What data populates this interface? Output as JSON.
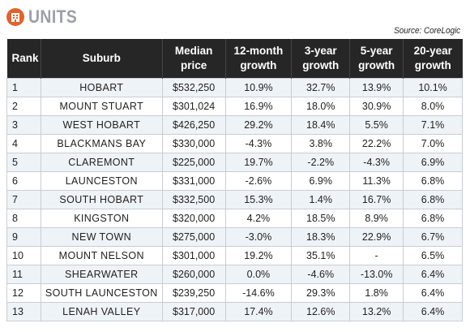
{
  "header": {
    "title": "UNITS",
    "icon": "building-icon",
    "source": "Source: CoreLogic"
  },
  "colors": {
    "accent": "#e2622b",
    "title_gray": "#9aa0a6",
    "header_bg": "#262626",
    "row_alt": "#eef3f8"
  },
  "table": {
    "headers": {
      "rank": "Rank",
      "suburb": "Suburb",
      "price_1": "Median",
      "price_2": "price",
      "g12_1": "12-month",
      "g12_2": "growth",
      "g3_1": "3-year",
      "g3_2": "growth",
      "g5_1": "5-year",
      "g5_2": "growth",
      "g20_1": "20-year",
      "g20_2": "growth"
    },
    "rows": [
      {
        "rank": "1",
        "suburb": "HOBART",
        "price": "$532,250",
        "g12": "10.9%",
        "g3": "32.7%",
        "g5": "13.9%",
        "g20": "10.1%"
      },
      {
        "rank": "2",
        "suburb": "MOUNT STUART",
        "price": "$301,024",
        "g12": "16.9%",
        "g3": "18.0%",
        "g5": "30.9%",
        "g20": "8.0%"
      },
      {
        "rank": "3",
        "suburb": "WEST HOBART",
        "price": "$426,250",
        "g12": "29.2%",
        "g3": "18.4%",
        "g5": "5.5%",
        "g20": "7.1%"
      },
      {
        "rank": "4",
        "suburb": "BLACKMANS BAY",
        "price": "$330,000",
        "g12": "-4.3%",
        "g3": "3.8%",
        "g5": "22.2%",
        "g20": "7.0%"
      },
      {
        "rank": "5",
        "suburb": "CLAREMONT",
        "price": "$225,000",
        "g12": "19.7%",
        "g3": "-2.2%",
        "g5": "-4.3%",
        "g20": "6.9%"
      },
      {
        "rank": "6",
        "suburb": "LAUNCESTON",
        "price": "$331,000",
        "g12": "-2.6%",
        "g3": "6.9%",
        "g5": "11.3%",
        "g20": "6.8%"
      },
      {
        "rank": "7",
        "suburb": "SOUTH HOBART",
        "price": "$332,500",
        "g12": "15.3%",
        "g3": "1.4%",
        "g5": "16.7%",
        "g20": "6.8%"
      },
      {
        "rank": "8",
        "suburb": "KINGSTON",
        "price": "$320,000",
        "g12": "4.2%",
        "g3": "18.5%",
        "g5": "8.9%",
        "g20": "6.8%"
      },
      {
        "rank": "9",
        "suburb": "NEW TOWN",
        "price": "$275,000",
        "g12": "-3.0%",
        "g3": "18.3%",
        "g5": "22.9%",
        "g20": "6.7%"
      },
      {
        "rank": "10",
        "suburb": "MOUNT NELSON",
        "price": "$301,000",
        "g12": "19.2%",
        "g3": "35.1%",
        "g5": "-",
        "g20": "6.5%"
      },
      {
        "rank": "11",
        "suburb": "SHEARWATER",
        "price": "$260,000",
        "g12": "0.0%",
        "g3": "-4.6%",
        "g5": "-13.0%",
        "g20": "6.4%"
      },
      {
        "rank": "12",
        "suburb": "SOUTH LAUNCESTON",
        "price": "$239,250",
        "g12": "-14.6%",
        "g3": "29.3%",
        "g5": "1.8%",
        "g20": "6.4%"
      },
      {
        "rank": "13",
        "suburb": "LENAH VALLEY",
        "price": "$317,000",
        "g12": "17.4%",
        "g3": "12.6%",
        "g5": "13.2%",
        "g20": "6.4%"
      }
    ]
  }
}
